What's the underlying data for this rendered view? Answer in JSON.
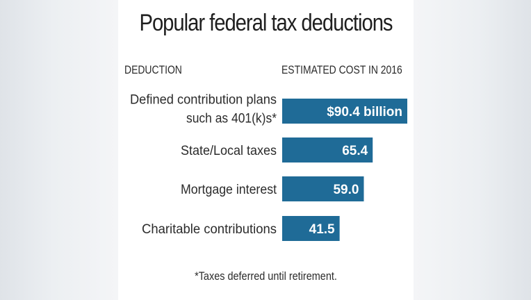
{
  "chart_data": {
    "type": "bar",
    "orientation": "horizontal",
    "title": "Popular federal tax deductions",
    "column_headers": {
      "category": "DEDUCTION",
      "value": "ESTIMATED COST IN 2016"
    },
    "categories": [
      [
        "Defined contribution plans",
        "such as 401(k)s*"
      ],
      [
        "State/Local taxes"
      ],
      [
        "Mortgage interest"
      ],
      [
        "Charitable contributions"
      ]
    ],
    "values": [
      90.4,
      65.4,
      59.0,
      41.5
    ],
    "value_labels": [
      "$90.4 billion",
      "65.4",
      "59.0",
      "41.5"
    ],
    "bar_color": "#1f6b97",
    "label_color": "#ffffff",
    "footnote": "*Taxes deferred until retirement."
  }
}
